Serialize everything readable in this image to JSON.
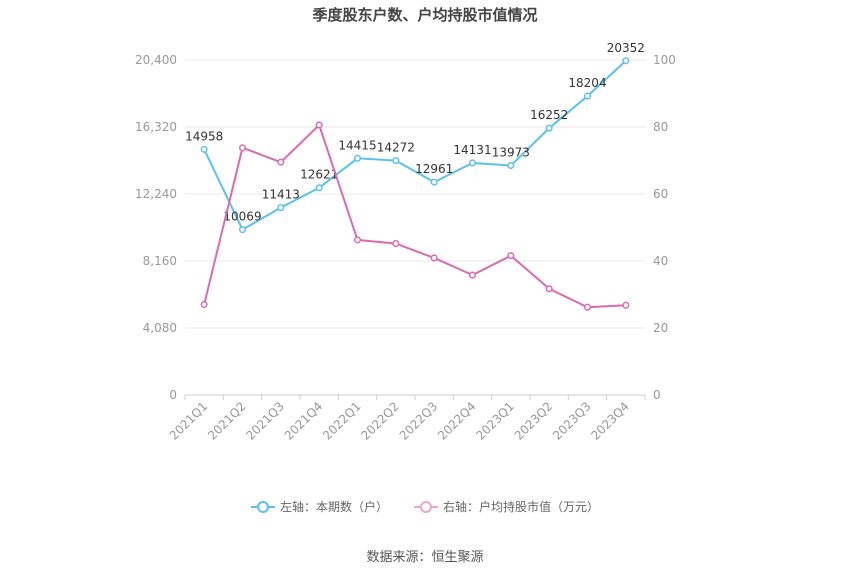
{
  "chart_data": {
    "type": "line",
    "title": "季度股东户数、户均持股市值情况",
    "categories": [
      "2021Q1",
      "2021Q2",
      "2021Q3",
      "2021Q4",
      "2022Q1",
      "2022Q2",
      "2022Q3",
      "2022Q4",
      "2023Q1",
      "2023Q2",
      "2023Q3",
      "2023Q4"
    ],
    "series": [
      {
        "name": "左轴：本期数（户）",
        "axis": "left",
        "color": "#5bc2ee",
        "values": [
          14958,
          10069,
          11413,
          12621,
          14415,
          14272,
          12961,
          14131,
          13973,
          16252,
          18204,
          20352
        ]
      },
      {
        "name": "右轴：户均持股市值（万元）",
        "axis": "right",
        "color": "#d96bb1",
        "values": [
          27.0,
          73.8,
          69.5,
          80.6,
          46.3,
          45.2,
          40.9,
          35.8,
          41.6,
          31.7,
          26.2,
          26.8
        ]
      }
    ],
    "y_left": {
      "range": [
        0,
        20400
      ],
      "ticks": [
        "0",
        "4,080",
        "8,160",
        "12,240",
        "16,320",
        "20,400"
      ]
    },
    "y_right": {
      "range": [
        0,
        100
      ],
      "ticks": [
        "0",
        "20",
        "40",
        "60",
        "80",
        "100"
      ]
    },
    "grid": true,
    "legend_position": "bottom"
  },
  "source_text": "数据来源：恒生聚源"
}
